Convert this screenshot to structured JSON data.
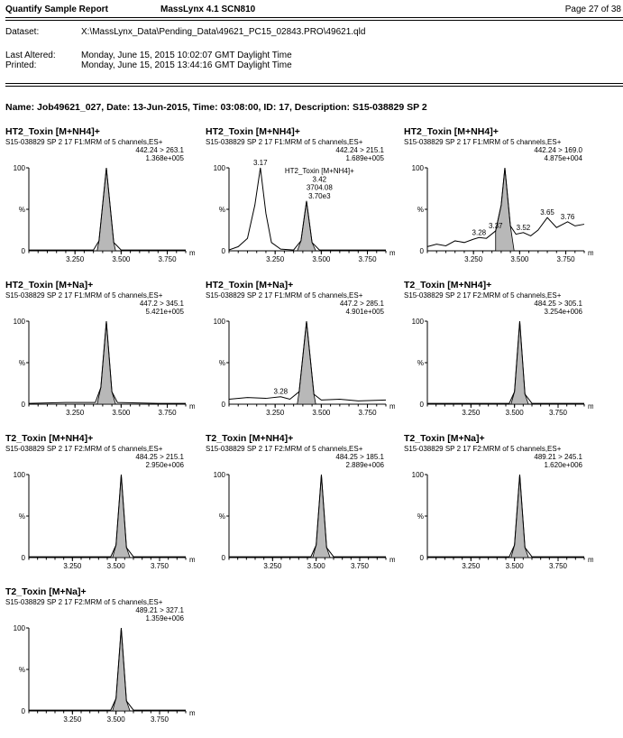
{
  "header": {
    "report_title": "Quantify Sample Report",
    "software": "MassLynx 4.1 SCN810",
    "page": "Page 27 of 38",
    "dataset_label": "Dataset:",
    "dataset_value": "X:\\MassLynx_Data\\Pending_Data\\49621_PC15_02843.PRO\\49621.qld",
    "last_altered_label": "Last Altered:",
    "last_altered_value": "Monday, June 15, 2015 10:02:07 GMT Daylight Time",
    "printed_label": "Printed:",
    "printed_value": "Monday, June 15, 2015 13:44:16 GMT Daylight Time"
  },
  "sample_caption": "Name: Job49621_027, Date: 13-Jun-2015, Time: 03:08:00, ID: 17, Description: S15-038829 SP 2",
  "axis": {
    "y_top": "100",
    "y_mid": "%",
    "y_bottom": "0",
    "x_unit": "min"
  },
  "chart_data": [
    {
      "type": "line",
      "title": "HT2_Toxin [M+NH4]+",
      "function_line": "S15-038829 SP 2 17 F1:MRM of 5 channels,ES+",
      "transition": "442.24 > 263.1",
      "intensity": "1.368e+005",
      "x_ticks": [
        "3.250",
        "3.500",
        "3.750"
      ],
      "xlim": [
        3.0,
        3.85
      ],
      "ylim": [
        0,
        100
      ],
      "x": [
        3.0,
        3.2,
        3.35,
        3.38,
        3.42,
        3.46,
        3.5,
        3.7,
        3.85
      ],
      "y": [
        1,
        1,
        1,
        12,
        100,
        10,
        1,
        1,
        1
      ],
      "peak": [
        3.42,
        100
      ],
      "shade": [
        3.37,
        3.47
      ],
      "labels": []
    },
    {
      "type": "line",
      "title": "HT2_Toxin [M+NH4]+",
      "function_line": "S15-038829 SP 2 17 F1:MRM of 5 channels,ES+",
      "transition": "442.24 > 215.1",
      "intensity": "1.689e+005",
      "x_ticks": [
        "3.250",
        "3.500",
        "3.750"
      ],
      "xlim": [
        3.0,
        3.85
      ],
      "ylim": [
        0,
        100
      ],
      "x": [
        3.0,
        3.05,
        3.1,
        3.14,
        3.17,
        3.2,
        3.23,
        3.28,
        3.35,
        3.39,
        3.42,
        3.45,
        3.49,
        3.55,
        3.7,
        3.85
      ],
      "y": [
        1,
        5,
        15,
        55,
        100,
        45,
        10,
        2,
        1,
        12,
        60,
        10,
        1,
        1,
        1,
        1
      ],
      "peak": [
        3.42,
        60
      ],
      "shade": [
        3.37,
        3.47
      ],
      "labels": [
        {
          "x": 3.17,
          "y": 100,
          "text": "3.17"
        },
        {
          "x": 3.49,
          "y": 90,
          "text": "HT2_Toxin [M+NH4]+"
        },
        {
          "x": 3.49,
          "y": 80,
          "text": "3.42"
        },
        {
          "x": 3.49,
          "y": 70,
          "text": "3704.08"
        },
        {
          "x": 3.49,
          "y": 60,
          "text": "3.70e3"
        }
      ]
    },
    {
      "type": "line",
      "title": "HT2_Toxin [M+NH4]+",
      "function_line": "S15-038829 SP 2 17 F1:MRM of 5 channels,ES+",
      "transition": "442.24 > 169.0",
      "intensity": "4.875e+004",
      "x_ticks": [
        "3.250",
        "3.500",
        "3.750"
      ],
      "xlim": [
        3.0,
        3.85
      ],
      "ylim": [
        0,
        100
      ],
      "x": [
        3.0,
        3.05,
        3.1,
        3.15,
        3.2,
        3.25,
        3.28,
        3.32,
        3.37,
        3.4,
        3.42,
        3.45,
        3.48,
        3.52,
        3.56,
        3.6,
        3.65,
        3.7,
        3.76,
        3.8,
        3.85
      ],
      "y": [
        5,
        8,
        6,
        12,
        10,
        14,
        16,
        15,
        24,
        55,
        100,
        30,
        20,
        22,
        18,
        25,
        40,
        28,
        35,
        30,
        32
      ],
      "peak": [
        3.42,
        100
      ],
      "shade": [
        3.37,
        3.47
      ],
      "labels": [
        {
          "x": 3.28,
          "y": 16,
          "text": "3.28"
        },
        {
          "x": 3.37,
          "y": 24,
          "text": "3.37"
        },
        {
          "x": 3.52,
          "y": 22,
          "text": "3.52"
        },
        {
          "x": 3.65,
          "y": 40,
          "text": "3.65"
        },
        {
          "x": 3.76,
          "y": 35,
          "text": "3.76"
        }
      ]
    },
    {
      "type": "line",
      "title": "HT2_Toxin [M+Na]+",
      "function_line": "S15-038829 SP 2 17 F1:MRM of 5 channels,ES+",
      "transition": "447.2 > 345.1",
      "intensity": "5.421e+005",
      "x_ticks": [
        "3.250",
        "3.500",
        "3.750"
      ],
      "xlim": [
        3.0,
        3.85
      ],
      "ylim": [
        0,
        100
      ],
      "x": [
        3.0,
        3.2,
        3.36,
        3.39,
        3.42,
        3.45,
        3.48,
        3.7,
        3.85
      ],
      "y": [
        1,
        2,
        2,
        20,
        100,
        15,
        2,
        1,
        1
      ],
      "peak": [
        3.42,
        100
      ],
      "shade": [
        3.37,
        3.47
      ],
      "labels": []
    },
    {
      "type": "line",
      "title": "HT2_Toxin [M+Na]+",
      "function_line": "S15-038829 SP 2 17 F1:MRM of 5 channels,ES+",
      "transition": "447.2 > 285.1",
      "intensity": "4.901e+005",
      "x_ticks": [
        "3.250",
        "3.500",
        "3.750"
      ],
      "xlim": [
        3.0,
        3.85
      ],
      "ylim": [
        0,
        100
      ],
      "x": [
        3.0,
        3.1,
        3.2,
        3.28,
        3.33,
        3.38,
        3.42,
        3.46,
        3.5,
        3.6,
        3.7,
        3.85
      ],
      "y": [
        6,
        8,
        7,
        9,
        6,
        15,
        100,
        12,
        5,
        6,
        4,
        5
      ],
      "peak": [
        3.42,
        100
      ],
      "shade": [
        3.37,
        3.47
      ],
      "labels": [
        {
          "x": 3.28,
          "y": 9,
          "text": "3.28"
        }
      ]
    },
    {
      "type": "line",
      "title": "T2_Toxin [M+NH4]+",
      "function_line": "S15-038829 SP 2 17 F2:MRM of 5 channels,ES+",
      "transition": "484.25 > 305.1",
      "intensity": "3.254e+006",
      "x_ticks": [
        "3.250",
        "3.500",
        "3.750"
      ],
      "xlim": [
        3.0,
        3.9
      ],
      "ylim": [
        0,
        100
      ],
      "x": [
        3.0,
        3.3,
        3.47,
        3.5,
        3.53,
        3.56,
        3.6,
        3.75,
        3.9
      ],
      "y": [
        1,
        1,
        1,
        15,
        100,
        12,
        1,
        1,
        1
      ],
      "peak": [
        3.53,
        100
      ],
      "shade": [
        3.48,
        3.58
      ],
      "labels": []
    },
    {
      "type": "line",
      "title": "T2_Toxin [M+NH4]+",
      "function_line": "S15-038829 SP 2 17 F2:MRM of 5 channels,ES+",
      "transition": "484.25 > 215.1",
      "intensity": "2.950e+006",
      "x_ticks": [
        "3.250",
        "3.500",
        "3.750"
      ],
      "xlim": [
        3.0,
        3.9
      ],
      "ylim": [
        0,
        100
      ],
      "x": [
        3.0,
        3.3,
        3.47,
        3.5,
        3.53,
        3.56,
        3.6,
        3.75,
        3.9
      ],
      "y": [
        1,
        1,
        1,
        15,
        100,
        12,
        1,
        1,
        1
      ],
      "peak": [
        3.53,
        100
      ],
      "shade": [
        3.48,
        3.58
      ],
      "labels": []
    },
    {
      "type": "line",
      "title": "T2_Toxin [M+NH4]+",
      "function_line": "S15-038829 SP 2 17 F2:MRM of 5 channels,ES+",
      "transition": "484.25 > 185.1",
      "intensity": "2.889e+006",
      "x_ticks": [
        "3.250",
        "3.500",
        "3.750"
      ],
      "xlim": [
        3.0,
        3.9
      ],
      "ylim": [
        0,
        100
      ],
      "x": [
        3.0,
        3.3,
        3.47,
        3.5,
        3.53,
        3.56,
        3.6,
        3.75,
        3.9
      ],
      "y": [
        1,
        1,
        1,
        15,
        100,
        12,
        1,
        1,
        1
      ],
      "peak": [
        3.53,
        100
      ],
      "shade": [
        3.48,
        3.58
      ],
      "labels": []
    },
    {
      "type": "line",
      "title": "T2_Toxin [M+Na]+",
      "function_line": "S15-038829 SP 2 17 F2:MRM of 5 channels,ES+",
      "transition": "489.21 > 245.1",
      "intensity": "1.620e+006",
      "x_ticks": [
        "3.250",
        "3.500",
        "3.750"
      ],
      "xlim": [
        3.0,
        3.9
      ],
      "ylim": [
        0,
        100
      ],
      "x": [
        3.0,
        3.3,
        3.47,
        3.5,
        3.53,
        3.56,
        3.6,
        3.75,
        3.9
      ],
      "y": [
        1,
        1,
        1,
        15,
        100,
        12,
        1,
        1,
        1
      ],
      "peak": [
        3.53,
        100
      ],
      "shade": [
        3.48,
        3.58
      ],
      "labels": []
    },
    {
      "type": "line",
      "title": "T2_Toxin [M+Na]+",
      "function_line": "S15-038829 SP 2 17 F2:MRM of 5 channels,ES+",
      "transition": "489.21 > 327.1",
      "intensity": "1.359e+006",
      "x_ticks": [
        "3.250",
        "3.500",
        "3.750"
      ],
      "xlim": [
        3.0,
        3.9
      ],
      "ylim": [
        0,
        100
      ],
      "x": [
        3.0,
        3.3,
        3.47,
        3.5,
        3.53,
        3.56,
        3.6,
        3.75,
        3.9
      ],
      "y": [
        1,
        1,
        1,
        15,
        100,
        12,
        1,
        1,
        1
      ],
      "peak": [
        3.53,
        100
      ],
      "shade": [
        3.48,
        3.58
      ],
      "labels": []
    }
  ]
}
